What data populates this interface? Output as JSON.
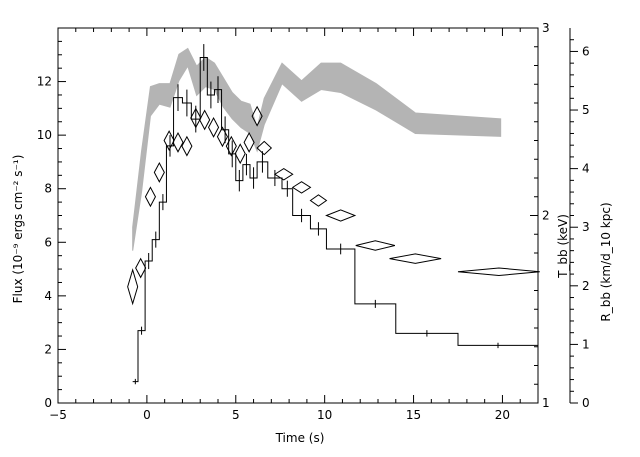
{
  "chart_data": {
    "type": "line",
    "xlabel": "Time (s)",
    "ylabel_left": "Flux (10⁻⁹ ergs cm⁻² s⁻¹)",
    "ylabel_right_inner": "T_bb (keV)",
    "ylabel_right_outer": "R_bb (km/d_10 kpc)",
    "xlim": [
      -5,
      22
    ],
    "ylim_left": [
      0,
      14
    ],
    "ylim_right_inner": [
      1,
      3
    ],
    "ylim_right_outer": [
      0,
      6.4
    ],
    "x_ticks": [
      -5,
      0,
      5,
      10,
      15,
      20
    ],
    "y_left_ticks": [
      0,
      2,
      4,
      6,
      8,
      10,
      12
    ],
    "y_right_inner_ticks": [
      1,
      2,
      3
    ],
    "y_right_outer_ticks": [
      0,
      1,
      2,
      3,
      4,
      5,
      6
    ],
    "grid": false,
    "series": [
      {
        "kind": "flux-histogram",
        "color": "#000000",
        "bins": [
          {
            "x0": -0.8,
            "x1": -0.5,
            "y": 0.8,
            "err": 0.1
          },
          {
            "x0": -0.5,
            "x1": -0.1,
            "y": 2.7,
            "err": 0.15
          },
          {
            "x0": -0.1,
            "x1": 0.3,
            "y": 5.3,
            "err": 0.3
          },
          {
            "x0": 0.3,
            "x1": 0.7,
            "y": 6.1,
            "err": 0.3
          },
          {
            "x0": 0.7,
            "x1": 1.1,
            "y": 7.5,
            "err": 0.3
          },
          {
            "x0": 1.1,
            "x1": 1.5,
            "y": 9.6,
            "err": 0.4
          },
          {
            "x0": 1.5,
            "x1": 2.0,
            "y": 11.4,
            "err": 0.5
          },
          {
            "x0": 2.0,
            "x1": 2.5,
            "y": 11.2,
            "err": 0.5
          },
          {
            "x0": 2.5,
            "x1": 3.0,
            "y": 10.6,
            "err": 0.5
          },
          {
            "x0": 3.0,
            "x1": 3.4,
            "y": 12.9,
            "err": 0.5
          },
          {
            "x0": 3.4,
            "x1": 3.8,
            "y": 11.5,
            "err": 0.5
          },
          {
            "x0": 3.8,
            "x1": 4.2,
            "y": 11.7,
            "err": 0.5
          },
          {
            "x0": 4.2,
            "x1": 4.6,
            "y": 10.2,
            "err": 0.5
          },
          {
            "x0": 4.6,
            "x1": 5.0,
            "y": 9.3,
            "err": 0.5
          },
          {
            "x0": 5.0,
            "x1": 5.4,
            "y": 8.3,
            "err": 0.4
          },
          {
            "x0": 5.4,
            "x1": 5.8,
            "y": 8.9,
            "err": 0.4
          },
          {
            "x0": 5.8,
            "x1": 6.2,
            "y": 8.4,
            "err": 0.4
          },
          {
            "x0": 6.2,
            "x1": 6.8,
            "y": 9.0,
            "err": 0.4
          },
          {
            "x0": 6.8,
            "x1": 7.6,
            "y": 8.4,
            "err": 0.3
          },
          {
            "x0": 7.6,
            "x1": 8.2,
            "y": 8.0,
            "err": 0.3
          },
          {
            "x0": 8.2,
            "x1": 9.2,
            "y": 7.0,
            "err": 0.25
          },
          {
            "x0": 9.2,
            "x1": 10.1,
            "y": 6.5,
            "err": 0.25
          },
          {
            "x0": 10.1,
            "x1": 11.7,
            "y": 5.75,
            "err": 0.2
          },
          {
            "x0": 11.7,
            "x1": 14.0,
            "y": 3.7,
            "err": 0.15
          },
          {
            "x0": 14.0,
            "x1": 17.5,
            "y": 2.6,
            "err": 0.12
          },
          {
            "x0": 17.5,
            "x1": 22.0,
            "y": 2.15,
            "err": 0.1
          }
        ]
      },
      {
        "kind": "temperature-diamonds",
        "axis": "right_inner",
        "color": "#000000",
        "points": [
          {
            "x": -0.8,
            "y": 1.62,
            "xerr": 0.15,
            "yerr": 0.09
          },
          {
            "x": -0.35,
            "y": 1.72,
            "xerr": 0.2,
            "yerr": 0.05
          },
          {
            "x": 0.2,
            "y": 2.1,
            "xerr": 0.2,
            "yerr": 0.05
          },
          {
            "x": 0.7,
            "y": 2.23,
            "xerr": 0.2,
            "yerr": 0.05
          },
          {
            "x": 1.25,
            "y": 2.4,
            "xerr": 0.22,
            "yerr": 0.05
          },
          {
            "x": 1.75,
            "y": 2.39,
            "xerr": 0.22,
            "yerr": 0.05
          },
          {
            "x": 2.25,
            "y": 2.37,
            "xerr": 0.22,
            "yerr": 0.05
          },
          {
            "x": 2.75,
            "y": 2.52,
            "xerr": 0.22,
            "yerr": 0.05
          },
          {
            "x": 3.25,
            "y": 2.51,
            "xerr": 0.22,
            "yerr": 0.05
          },
          {
            "x": 3.75,
            "y": 2.47,
            "xerr": 0.22,
            "yerr": 0.05
          },
          {
            "x": 4.25,
            "y": 2.42,
            "xerr": 0.22,
            "yerr": 0.05
          },
          {
            "x": 4.75,
            "y": 2.37,
            "xerr": 0.22,
            "yerr": 0.05
          },
          {
            "x": 5.25,
            "y": 2.33,
            "xerr": 0.22,
            "yerr": 0.05
          },
          {
            "x": 5.75,
            "y": 2.39,
            "xerr": 0.22,
            "yerr": 0.05
          },
          {
            "x": 6.2,
            "y": 2.53,
            "xerr": 0.22,
            "yerr": 0.05
          },
          {
            "x": 6.6,
            "y": 2.36,
            "xerr": 0.4,
            "yerr": 0.035
          },
          {
            "x": 7.7,
            "y": 2.22,
            "xerr": 0.5,
            "yerr": 0.03
          },
          {
            "x": 8.7,
            "y": 2.15,
            "xerr": 0.5,
            "yerr": 0.03
          },
          {
            "x": 9.65,
            "y": 2.08,
            "xerr": 0.45,
            "yerr": 0.03
          },
          {
            "x": 10.9,
            "y": 2.0,
            "xerr": 0.8,
            "yerr": 0.03
          },
          {
            "x": 12.85,
            "y": 1.84,
            "xerr": 1.1,
            "yerr": 0.025
          },
          {
            "x": 15.1,
            "y": 1.77,
            "xerr": 1.45,
            "yerr": 0.025
          },
          {
            "x": 19.8,
            "y": 1.7,
            "xerr": 2.3,
            "yerr": 0.02
          }
        ]
      },
      {
        "kind": "radius-band",
        "axis": "right_outer",
        "color": "#b4b4b4",
        "points": [
          {
            "x": -0.8,
            "lo": 2.6,
            "hi": 3.0
          },
          {
            "x": -0.3,
            "lo": 3.6,
            "hi": 4.3
          },
          {
            "x": 0.2,
            "lo": 4.9,
            "hi": 5.4
          },
          {
            "x": 0.7,
            "lo": 5.1,
            "hi": 5.45
          },
          {
            "x": 1.3,
            "lo": 5.05,
            "hi": 5.45
          },
          {
            "x": 1.8,
            "lo": 5.5,
            "hi": 5.95
          },
          {
            "x": 2.3,
            "lo": 5.75,
            "hi": 6.05
          },
          {
            "x": 2.8,
            "lo": 5.25,
            "hi": 5.75
          },
          {
            "x": 3.3,
            "lo": 5.4,
            "hi": 5.9
          },
          {
            "x": 3.8,
            "lo": 5.35,
            "hi": 5.8
          },
          {
            "x": 4.3,
            "lo": 5.05,
            "hi": 5.55
          },
          {
            "x": 4.8,
            "lo": 4.85,
            "hi": 5.3
          },
          {
            "x": 5.3,
            "lo": 4.7,
            "hi": 5.15
          },
          {
            "x": 5.8,
            "lo": 4.6,
            "hi": 5.1
          },
          {
            "x": 6.2,
            "lo": 4.3,
            "hi": 4.7
          },
          {
            "x": 6.6,
            "lo": 4.75,
            "hi": 5.2
          },
          {
            "x": 7.6,
            "lo": 5.45,
            "hi": 5.8
          },
          {
            "x": 8.7,
            "lo": 5.15,
            "hi": 5.5
          },
          {
            "x": 9.8,
            "lo": 5.35,
            "hi": 5.8
          },
          {
            "x": 10.9,
            "lo": 5.3,
            "hi": 5.8
          },
          {
            "x": 12.9,
            "lo": 5.0,
            "hi": 5.45
          },
          {
            "x": 15.1,
            "lo": 4.6,
            "hi": 4.95
          },
          {
            "x": 19.9,
            "lo": 4.55,
            "hi": 4.85
          }
        ]
      }
    ]
  }
}
